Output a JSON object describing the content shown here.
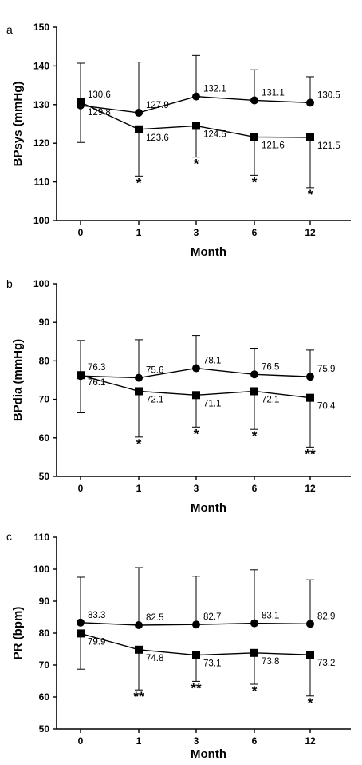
{
  "chart_data": [
    {
      "type": "line",
      "panel_label": "a",
      "x": [
        "0",
        "1",
        "3",
        "6",
        "12"
      ],
      "xlabel": "Month",
      "ylabel": "BPsys (mmHg)",
      "ylim": [
        100,
        150
      ],
      "yticks": [
        100,
        110,
        120,
        130,
        140,
        150
      ],
      "series": [
        {
          "marker": "circle",
          "values": [
            129.8,
            127.9,
            132.1,
            131.1,
            130.5
          ],
          "labels": [
            "129.8",
            "127.9",
            "132.1",
            "131.1",
            "130.5"
          ],
          "error_upper": [
            140.7,
            141.0,
            142.7,
            139.0,
            137.2
          ]
        },
        {
          "marker": "square",
          "values": [
            130.6,
            123.6,
            124.5,
            121.6,
            121.5
          ],
          "labels": [
            "130.6",
            "123.6",
            "124.5",
            "121.6",
            "121.5"
          ],
          "error_lower": [
            120.2,
            111.5,
            116.4,
            111.7,
            108.5
          ]
        }
      ],
      "significance": [
        "",
        "*",
        "*",
        "*",
        "*"
      ]
    },
    {
      "type": "line",
      "panel_label": "b",
      "x": [
        "0",
        "1",
        "3",
        "6",
        "12"
      ],
      "xlabel": "Month",
      "ylabel": "BPdia (mmHg)",
      "ylim": [
        50,
        100
      ],
      "yticks": [
        50,
        60,
        70,
        80,
        90,
        100
      ],
      "series": [
        {
          "marker": "circle",
          "values": [
            76.1,
            75.6,
            78.1,
            76.5,
            75.9
          ],
          "labels": [
            "76.1",
            "75.6",
            "78.1",
            "76.5",
            "75.9"
          ],
          "error_upper": [
            85.3,
            85.5,
            86.6,
            83.3,
            82.8
          ]
        },
        {
          "marker": "square",
          "values": [
            76.3,
            72.1,
            71.1,
            72.1,
            70.4
          ],
          "labels": [
            "76.3",
            "72.1",
            "71.1",
            "72.1",
            "70.4"
          ],
          "error_lower": [
            66.5,
            60.2,
            62.8,
            62.2,
            57.6
          ]
        }
      ],
      "significance": [
        "",
        "*",
        "*",
        "*",
        "**"
      ]
    },
    {
      "type": "line",
      "panel_label": "c",
      "x": [
        "0",
        "1",
        "3",
        "6",
        "12"
      ],
      "xlabel": "Month",
      "ylabel": "PR (bpm)",
      "ylim": [
        50,
        110
      ],
      "yticks": [
        50,
        60,
        70,
        80,
        90,
        100,
        110
      ],
      "series": [
        {
          "marker": "circle",
          "values": [
            83.3,
            82.5,
            82.7,
            83.1,
            82.9
          ],
          "labels": [
            "83.3",
            "82.5",
            "82.7",
            "83.1",
            "82.9"
          ],
          "error_upper": [
            97.5,
            100.5,
            97.8,
            99.8,
            96.7
          ]
        },
        {
          "marker": "square",
          "values": [
            79.9,
            74.8,
            73.1,
            73.8,
            73.2
          ],
          "labels": [
            "79.9",
            "74.8",
            "73.1",
            "73.8",
            "73.2"
          ],
          "error_lower": [
            68.7,
            62.2,
            64.9,
            64.0,
            60.3
          ]
        }
      ],
      "significance": [
        "",
        "**",
        "**",
        "*",
        "*"
      ]
    }
  ]
}
